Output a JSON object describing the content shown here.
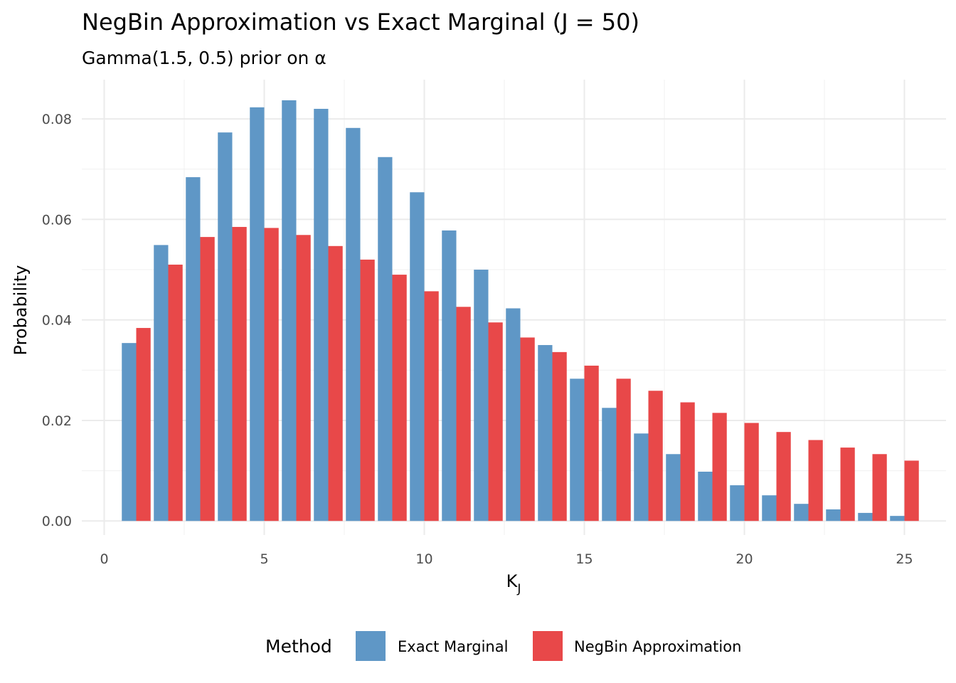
{
  "chart_data": {
    "type": "bar",
    "title": "NegBin Approximation vs Exact Marginal (J = 50)",
    "subtitle": "Gamma(1.5, 0.5) prior on α",
    "xlabel": "K",
    "xlabel_subscript": "J",
    "ylabel": "Probability",
    "xlim": [
      -0.7,
      26.3
    ],
    "ylim": [
      -0.0028,
      0.0878
    ],
    "xticks": [
      0,
      5,
      10,
      15,
      20,
      25
    ],
    "xtick_labels": [
      "0",
      "5",
      "10",
      "15",
      "20",
      "25"
    ],
    "yticks": [
      0,
      0.02,
      0.04,
      0.06,
      0.08
    ],
    "ytick_labels": [
      "0.00",
      "0.02",
      "0.04",
      "0.06",
      "0.08"
    ],
    "grid": true,
    "legend_title": "Method",
    "legend_position": "bottom",
    "x": [
      1,
      2,
      3,
      4,
      5,
      6,
      7,
      8,
      9,
      10,
      11,
      12,
      13,
      14,
      15,
      16,
      17,
      18,
      19,
      20,
      21,
      22,
      23,
      24,
      25
    ],
    "series": [
      {
        "name": "Exact Marginal",
        "color": "#5f97c6",
        "values": [
          0.0354,
          0.0549,
          0.0684,
          0.0773,
          0.0823,
          0.0837,
          0.082,
          0.0782,
          0.0724,
          0.0654,
          0.0578,
          0.05,
          0.0423,
          0.035,
          0.0283,
          0.0225,
          0.0174,
          0.0133,
          0.0098,
          0.0071,
          0.0051,
          0.0034,
          0.0023,
          0.0016,
          0.001
        ]
      },
      {
        "name": "NegBin Approximation",
        "color": "#e84849",
        "values": [
          0.0384,
          0.051,
          0.0565,
          0.0585,
          0.0583,
          0.0569,
          0.0547,
          0.052,
          0.049,
          0.0457,
          0.0426,
          0.0395,
          0.0365,
          0.0336,
          0.0309,
          0.0283,
          0.0259,
          0.0236,
          0.0215,
          0.0195,
          0.0177,
          0.0161,
          0.0146,
          0.0133,
          0.012
        ]
      }
    ]
  }
}
